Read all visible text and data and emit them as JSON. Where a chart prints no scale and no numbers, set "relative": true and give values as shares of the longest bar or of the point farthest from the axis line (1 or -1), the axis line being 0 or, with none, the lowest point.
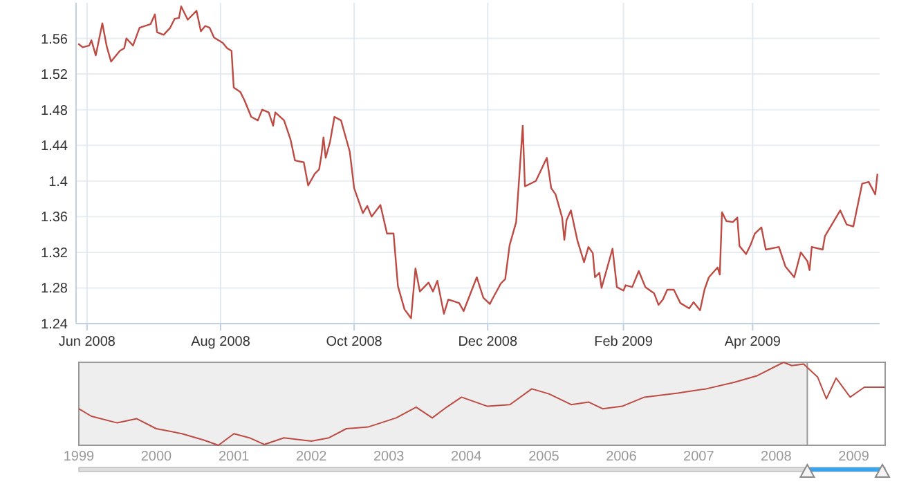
{
  "chart_data": [
    {
      "type": "line",
      "color": "#bd4b43",
      "grid": true,
      "xlim": [
        "2008-05-27",
        "2009-05-29"
      ],
      "ylim": [
        1.24,
        1.6
      ],
      "yticks": [
        1.24,
        1.28,
        1.32,
        1.36,
        1.4,
        1.44,
        1.48,
        1.52,
        1.56
      ],
      "xticks": [
        {
          "value": "2008-06-01",
          "label": "Jun 2008"
        },
        {
          "value": "2008-08-01",
          "label": "Aug 2008"
        },
        {
          "value": "2008-10-01",
          "label": "Oct 2008"
        },
        {
          "value": "2008-12-01",
          "label": "Dec 2008"
        },
        {
          "value": "2009-02-01",
          "label": "Feb 2009"
        },
        {
          "value": "2009-04-01",
          "label": "Apr 2009"
        }
      ],
      "x": [
        "2008-05-28",
        "2008-05-30",
        "2008-06-02",
        "2008-06-03",
        "2008-06-05",
        "2008-06-08",
        "2008-06-10",
        "2008-06-12",
        "2008-06-16",
        "2008-06-18",
        "2008-06-19",
        "2008-06-22",
        "2008-06-25",
        "2008-06-30",
        "2008-07-02",
        "2008-07-03",
        "2008-07-06",
        "2008-07-09",
        "2008-07-11",
        "2008-07-13",
        "2008-07-14",
        "2008-07-17",
        "2008-07-21",
        "2008-07-23",
        "2008-07-25",
        "2008-07-27",
        "2008-07-29",
        "2008-08-02",
        "2008-08-04",
        "2008-08-06",
        "2008-08-07",
        "2008-08-10",
        "2008-08-12",
        "2008-08-15",
        "2008-08-18",
        "2008-08-20",
        "2008-08-23",
        "2008-08-25",
        "2008-08-26",
        "2008-08-30",
        "2008-09-02",
        "2008-09-04",
        "2008-09-08",
        "2008-09-10",
        "2008-09-13",
        "2008-09-15",
        "2008-09-16",
        "2008-09-17",
        "2008-09-18",
        "2008-09-20",
        "2008-09-22",
        "2008-09-25",
        "2008-09-29",
        "2008-10-01",
        "2008-10-05",
        "2008-10-07",
        "2008-10-09",
        "2008-10-13",
        "2008-10-16",
        "2008-10-19",
        "2008-10-21",
        "2008-10-24",
        "2008-10-27",
        "2008-10-29",
        "2008-10-31",
        "2008-11-04",
        "2008-11-06",
        "2008-11-08",
        "2008-11-11",
        "2008-11-13",
        "2008-11-18",
        "2008-11-20",
        "2008-11-26",
        "2008-11-29",
        "2008-12-02",
        "2008-12-03",
        "2008-12-07",
        "2008-12-09",
        "2008-12-11",
        "2008-12-14",
        "2008-12-17",
        "2008-12-18",
        "2008-12-23",
        "2008-12-28",
        "2008-12-30",
        "2009-01-01",
        "2009-01-04",
        "2009-01-05",
        "2009-01-06",
        "2009-01-08",
        "2009-01-11",
        "2009-01-14",
        "2009-01-16",
        "2009-01-18",
        "2009-01-19",
        "2009-01-21",
        "2009-01-22",
        "2009-01-27",
        "2009-01-29",
        "2009-02-01",
        "2009-02-02",
        "2009-02-05",
        "2009-02-08",
        "2009-02-11",
        "2009-02-15",
        "2009-02-17",
        "2009-02-19",
        "2009-02-21",
        "2009-02-24",
        "2009-02-27",
        "2009-03-03",
        "2009-03-05",
        "2009-03-08",
        "2009-03-10",
        "2009-03-12",
        "2009-03-16",
        "2009-03-17",
        "2009-03-18",
        "2009-03-20",
        "2009-03-23",
        "2009-03-25",
        "2009-03-26",
        "2009-03-29",
        "2009-03-31",
        "2009-04-02",
        "2009-04-05",
        "2009-04-07",
        "2009-04-13",
        "2009-04-16",
        "2009-04-20",
        "2009-04-23",
        "2009-04-26",
        "2009-04-27",
        "2009-04-28",
        "2009-05-03",
        "2009-05-04",
        "2009-05-11",
        "2009-05-14",
        "2009-05-17",
        "2009-05-21",
        "2009-05-24",
        "2009-05-27",
        "2009-05-28"
      ],
      "values": [
        1.554,
        1.55,
        1.552,
        1.558,
        1.541,
        1.577,
        1.551,
        1.534,
        1.546,
        1.549,
        1.56,
        1.552,
        1.572,
        1.576,
        1.587,
        1.567,
        1.564,
        1.572,
        1.582,
        1.583,
        1.596,
        1.581,
        1.591,
        1.568,
        1.574,
        1.572,
        1.561,
        1.555,
        1.549,
        1.546,
        1.505,
        1.5,
        1.49,
        1.472,
        1.468,
        1.48,
        1.477,
        1.462,
        1.477,
        1.468,
        1.446,
        1.423,
        1.421,
        1.395,
        1.408,
        1.413,
        1.428,
        1.449,
        1.426,
        1.444,
        1.472,
        1.468,
        1.433,
        1.392,
        1.364,
        1.372,
        1.36,
        1.373,
        1.341,
        1.341,
        1.282,
        1.256,
        1.246,
        1.302,
        1.276,
        1.286,
        1.276,
        1.288,
        1.251,
        1.267,
        1.263,
        1.254,
        1.292,
        1.269,
        1.262,
        1.267,
        1.285,
        1.29,
        1.328,
        1.354,
        1.462,
        1.394,
        1.4,
        1.426,
        1.392,
        1.385,
        1.359,
        1.334,
        1.356,
        1.367,
        1.333,
        1.309,
        1.326,
        1.319,
        1.292,
        1.297,
        1.28,
        1.324,
        1.281,
        1.277,
        1.283,
        1.281,
        1.299,
        1.281,
        1.274,
        1.261,
        1.267,
        1.278,
        1.278,
        1.263,
        1.257,
        1.264,
        1.255,
        1.278,
        1.292,
        1.303,
        1.295,
        1.365,
        1.355,
        1.354,
        1.359,
        1.327,
        1.318,
        1.328,
        1.341,
        1.348,
        1.323,
        1.326,
        1.304,
        1.292,
        1.32,
        1.31,
        1.3,
        1.326,
        1.323,
        1.338,
        1.367,
        1.351,
        1.349,
        1.397,
        1.399,
        1.385,
        1.408
      ]
    },
    {
      "type": "line",
      "color": "#bd4b43",
      "relative": true,
      "tick_labels": "x",
      "xlim": [
        "1999-01-01",
        "2009-05-29"
      ],
      "xticks": [
        {
          "value": "1999-01-01",
          "label": "1999"
        },
        {
          "value": "2000-01-01",
          "label": "2000"
        },
        {
          "value": "2001-01-01",
          "label": "2001"
        },
        {
          "value": "2002-01-01",
          "label": "2002"
        },
        {
          "value": "2003-01-01",
          "label": "2003"
        },
        {
          "value": "2004-01-01",
          "label": "2004"
        },
        {
          "value": "2005-01-01",
          "label": "2005"
        },
        {
          "value": "2006-01-01",
          "label": "2006"
        },
        {
          "value": "2007-01-01",
          "label": "2007"
        },
        {
          "value": "2008-01-01",
          "label": "2008"
        },
        {
          "value": "2009-01-01",
          "label": "2009"
        }
      ],
      "x": [
        "1999-01-01",
        "1999-03-01",
        "1999-07-01",
        "1999-10-01",
        "2000-01-01",
        "2000-05-01",
        "2000-08-15",
        "2000-10-20",
        "2001-01-01",
        "2001-03-15",
        "2001-05-25",
        "2001-08-25",
        "2002-01-01",
        "2002-03-25",
        "2002-06-15",
        "2002-09-25",
        "2003-02-05",
        "2003-05-10",
        "2003-07-25",
        "2003-10-01",
        "2003-12-10",
        "2004-04-10",
        "2004-07-25",
        "2004-11-05",
        "2005-01-25",
        "2005-05-10",
        "2005-08-01",
        "2005-10-05",
        "2006-01-05",
        "2006-04-20",
        "2006-09-25",
        "2007-02-05",
        "2007-06-20",
        "2007-10-05",
        "2008-02-05",
        "2008-03-15",
        "2008-05-10",
        "2008-07-15",
        "2008-08-25",
        "2008-10-10",
        "2008-12-15",
        "2009-02-20",
        "2009-05-28"
      ],
      "values": [
        0.44,
        0.35,
        0.27,
        0.32,
        0.2,
        0.14,
        0.06,
        0,
        0.14,
        0.09,
        0.01,
        0.09,
        0.05,
        0.09,
        0.2,
        0.22,
        0.33,
        0.46,
        0.33,
        0.46,
        0.58,
        0.47,
        0.49,
        0.68,
        0.62,
        0.49,
        0.52,
        0.44,
        0.47,
        0.58,
        0.63,
        0.68,
        0.76,
        0.84,
        1,
        0.96,
        0.98,
        0.82,
        0.56,
        0.81,
        0.58,
        0.7,
        0.7
      ]
    }
  ]
}
